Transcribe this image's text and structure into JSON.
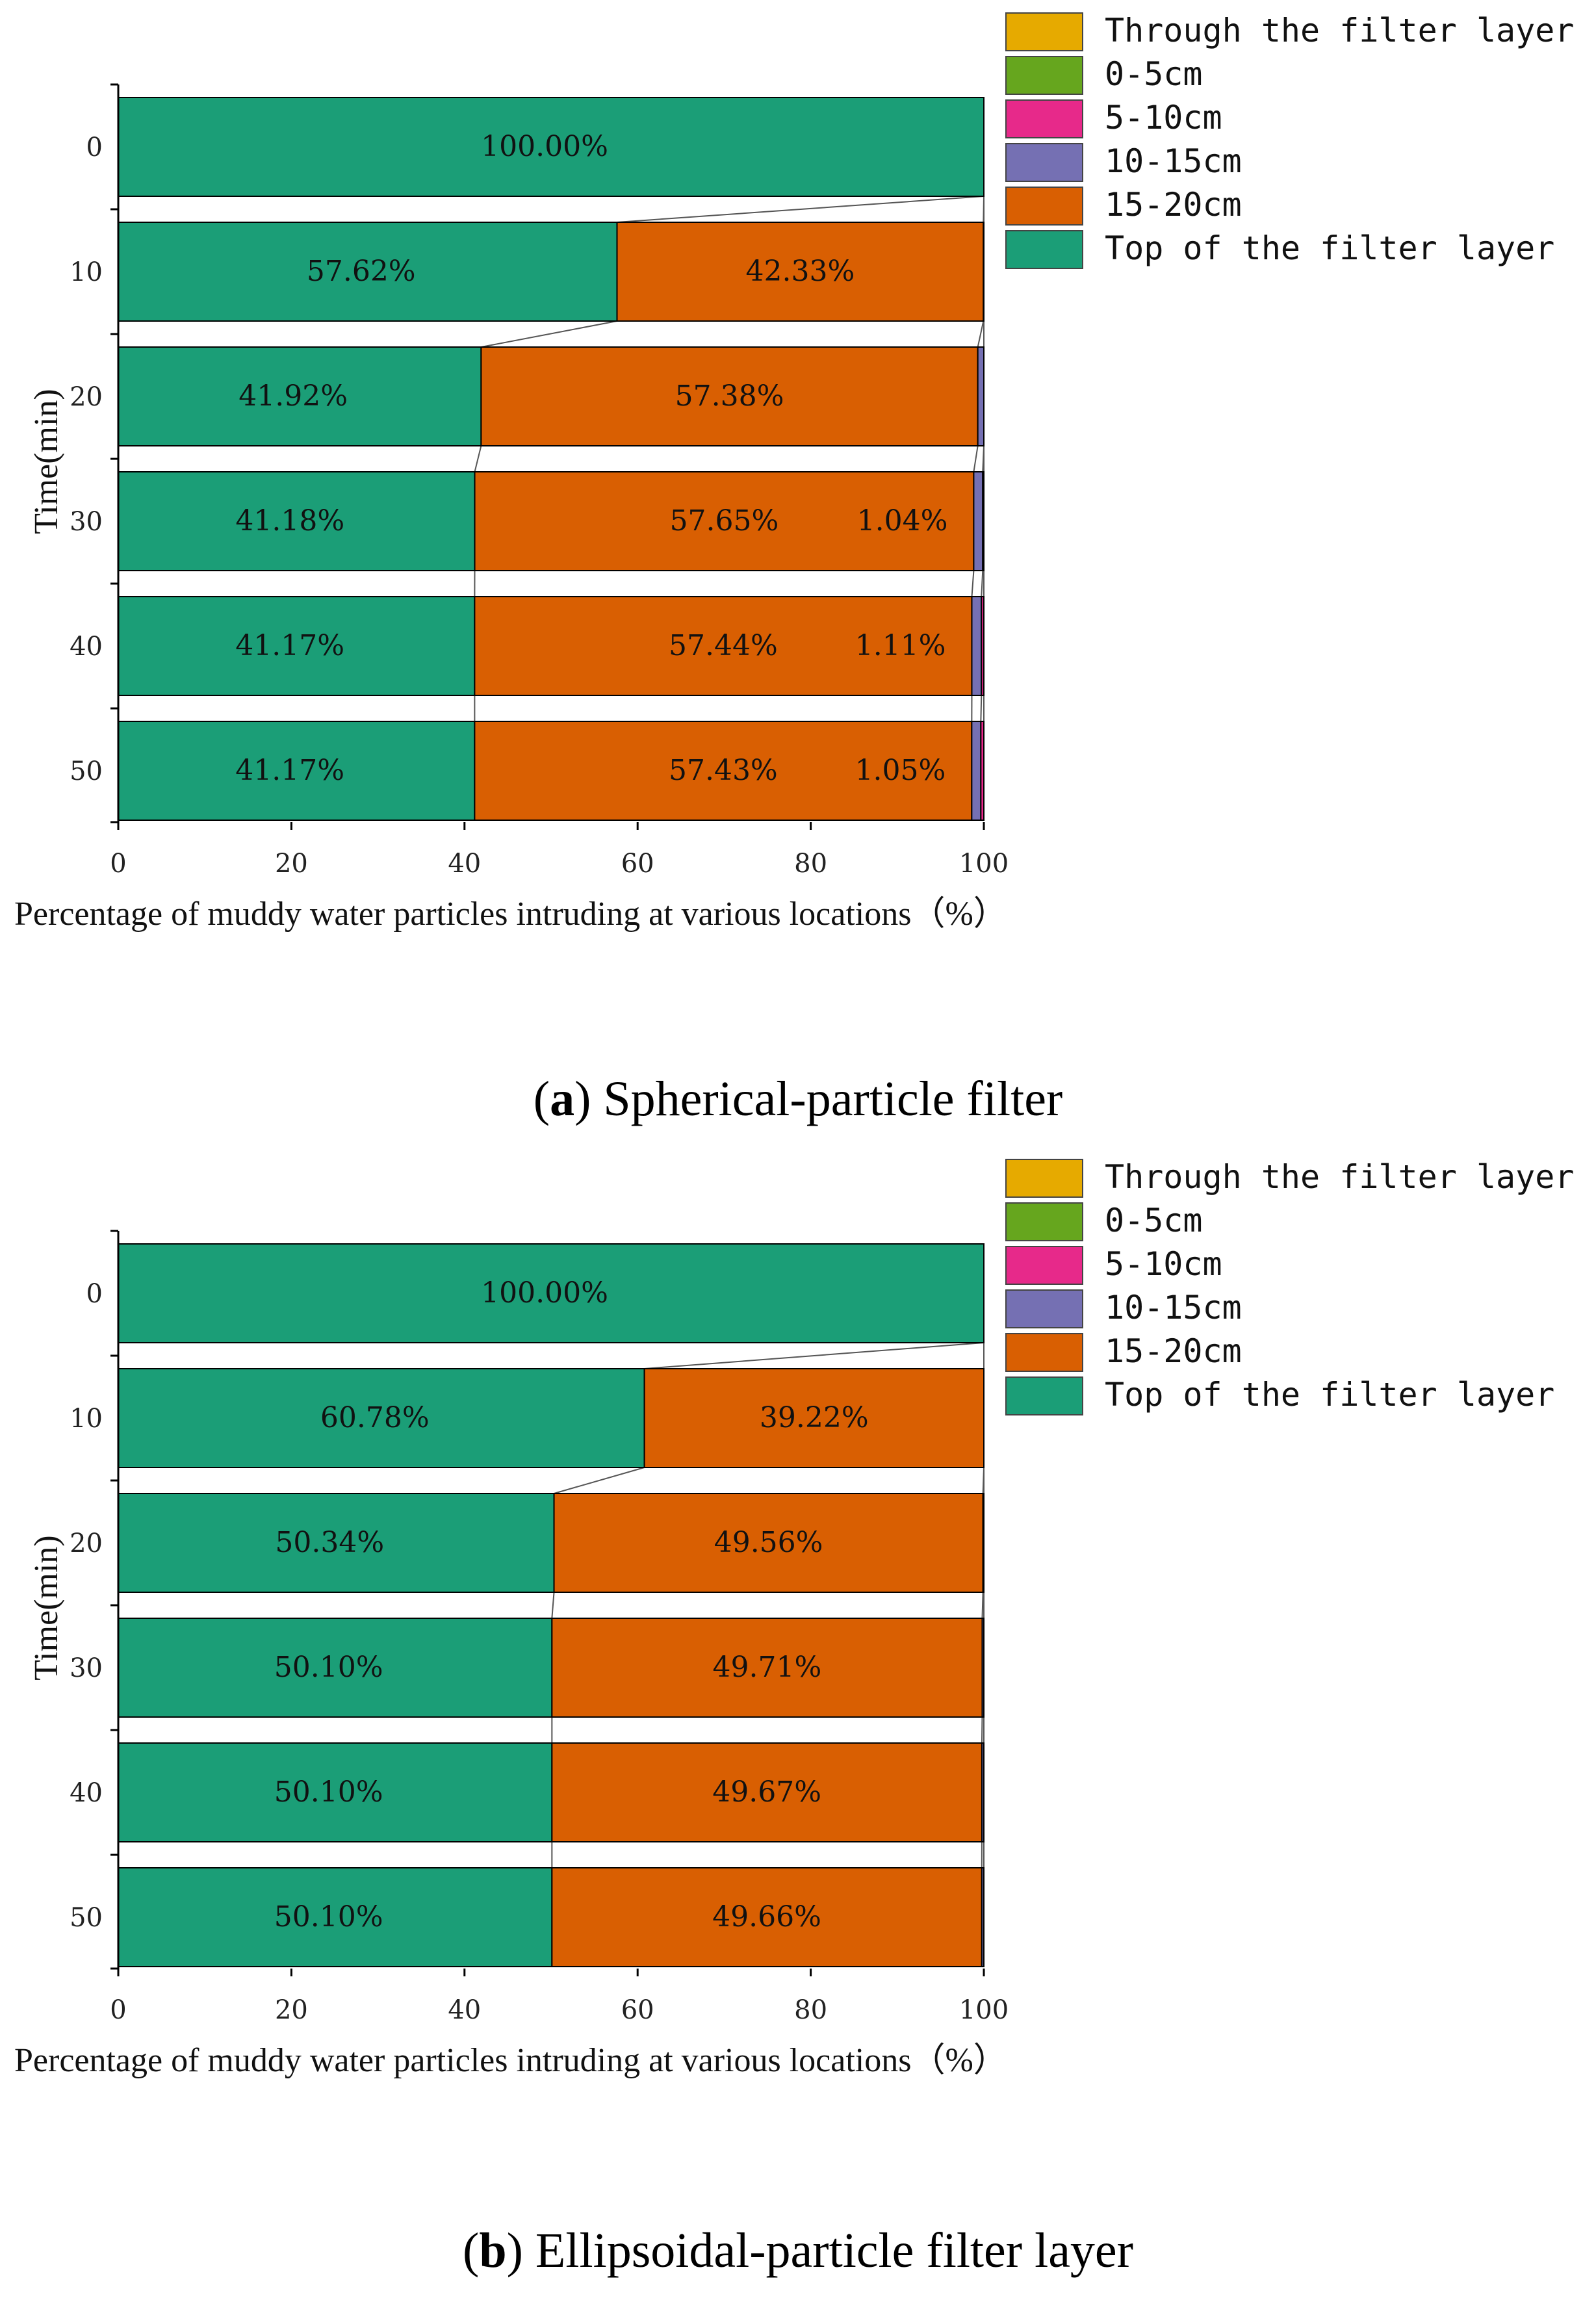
{
  "legend_colors": {
    "Through the filter layer": "#E6AA00",
    "0-5cm": "#66A61E",
    "5-10cm": "#E7298A",
    "10-15cm": "#7570B3",
    "15-20cm": "#D95F02",
    "Top of the filter layer": "#1B9E77"
  },
  "chart_data": [
    {
      "type": "bar",
      "orientation": "horizontal-stacked",
      "title": "Spherical-particle filter",
      "caption_letter": "a",
      "caption_open": "(",
      "caption_close": ")",
      "ylabel": "Time(min)",
      "xlabel": "Percentage of muddy water particles intruding at various locations（%）",
      "xlim": [
        0,
        100
      ],
      "xticks": [
        "0",
        "20",
        "40",
        "60",
        "80",
        "100"
      ],
      "categories": [
        "0",
        "10",
        "20",
        "30",
        "40",
        "50"
      ],
      "legend": [
        "Through the filter layer",
        "0-5cm",
        "5-10cm",
        "10-15cm",
        "15-20cm",
        "Top of the filter layer"
      ],
      "series": [
        {
          "name": "Top of the filter layer",
          "values": [
            100.0,
            57.62,
            41.92,
            41.18,
            41.17,
            41.17
          ],
          "labels": [
            "100.00%",
            "57.62%",
            "41.92%",
            "41.18%",
            "41.17%",
            "41.17%"
          ]
        },
        {
          "name": "15-20cm",
          "values": [
            0,
            42.33,
            57.38,
            57.65,
            57.44,
            57.43
          ],
          "labels": [
            "",
            "42.33%",
            "57.38%",
            "57.65%",
            "57.44%",
            "57.43%"
          ]
        },
        {
          "name": "10-15cm",
          "values": [
            0,
            0.05,
            0.7,
            1.04,
            1.11,
            1.05
          ],
          "labels": [
            "",
            "",
            "",
            "1.04%",
            "1.11%",
            "1.05%"
          ]
        },
        {
          "name": "5-10cm",
          "values": [
            0,
            0,
            0,
            0.13,
            0.28,
            0.35
          ],
          "labels": [
            "",
            "",
            "",
            "",
            "",
            ""
          ]
        },
        {
          "name": "0-5cm",
          "values": [
            0,
            0,
            0,
            0,
            0,
            0
          ],
          "labels": [
            "",
            "",
            "",
            "",
            "",
            ""
          ]
        },
        {
          "name": "Through the filter layer",
          "values": [
            0,
            0,
            0,
            0,
            0,
            0
          ],
          "labels": [
            "",
            "",
            "",
            "",
            "",
            ""
          ]
        }
      ]
    },
    {
      "type": "bar",
      "orientation": "horizontal-stacked",
      "title": "Ellipsoidal-particle filter layer",
      "caption_letter": "b",
      "caption_open": "(",
      "caption_close": ")",
      "ylabel": "Time(min)",
      "xlabel": "Percentage of muddy water particles intruding at various locations（%）",
      "xlim": [
        0,
        100
      ],
      "xticks": [
        "0",
        "20",
        "40",
        "60",
        "80",
        "100"
      ],
      "categories": [
        "0",
        "10",
        "20",
        "30",
        "40",
        "50"
      ],
      "legend": [
        "Through the filter layer",
        "0-5cm",
        "5-10cm",
        "10-15cm",
        "15-20cm",
        "Top of the filter layer"
      ],
      "series": [
        {
          "name": "Top of the filter layer",
          "values": [
            100.0,
            60.78,
            50.34,
            50.1,
            50.1,
            50.1
          ],
          "labels": [
            "100.00%",
            "60.78%",
            "50.34%",
            "50.10%",
            "50.10%",
            "50.10%"
          ]
        },
        {
          "name": "15-20cm",
          "values": [
            0,
            39.22,
            49.56,
            49.71,
            49.67,
            49.66
          ],
          "labels": [
            "",
            "39.22%",
            "49.56%",
            "49.71%",
            "49.67%",
            "49.66%"
          ]
        },
        {
          "name": "10-15cm",
          "values": [
            0,
            0,
            0.1,
            0.19,
            0.23,
            0.24
          ],
          "labels": [
            "",
            "",
            "",
            "",
            "",
            ""
          ]
        },
        {
          "name": "5-10cm",
          "values": [
            0,
            0,
            0,
            0,
            0,
            0
          ],
          "labels": [
            "",
            "",
            "",
            "",
            "",
            ""
          ]
        },
        {
          "name": "0-5cm",
          "values": [
            0,
            0,
            0,
            0,
            0,
            0
          ],
          "labels": [
            "",
            "",
            "",
            "",
            "",
            ""
          ]
        },
        {
          "name": "Through the filter layer",
          "values": [
            0,
            0,
            0,
            0,
            0,
            0
          ],
          "labels": [
            "",
            "",
            "",
            "",
            "",
            ""
          ]
        }
      ]
    }
  ]
}
